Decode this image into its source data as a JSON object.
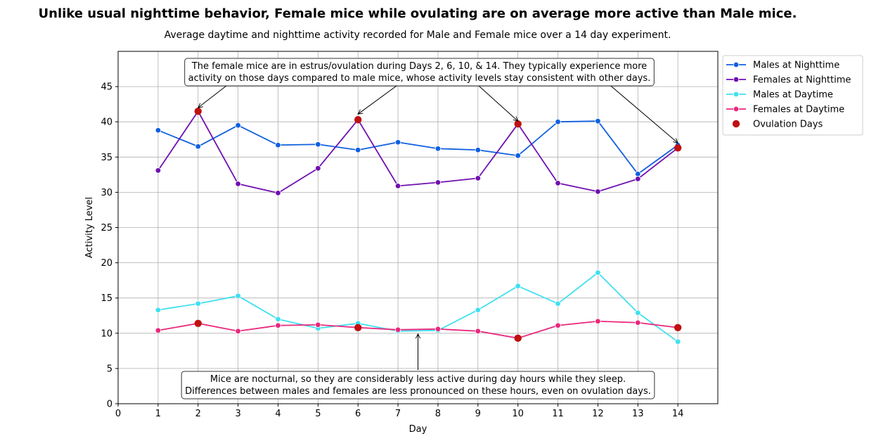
{
  "chart_data": {
    "type": "line",
    "title": "Unlike usual nighttime behavior, Female mice while ovulating are on average more active than Male mice.",
    "subtitle": "Average daytime and nighttime activity recorded for Male and Female mice over a 14 day experiment.",
    "xlabel": "Day",
    "ylabel": "Activity Level",
    "xlim": [
      0,
      15
    ],
    "ylim": [
      0,
      50
    ],
    "xticks": [
      0,
      1,
      2,
      3,
      4,
      5,
      6,
      7,
      8,
      9,
      10,
      11,
      12,
      13,
      14
    ],
    "yticks": [
      0,
      5,
      10,
      15,
      20,
      25,
      30,
      35,
      40,
      45
    ],
    "grid": true,
    "legend_position": "outside-upper-right",
    "x": [
      1,
      2,
      3,
      4,
      5,
      6,
      7,
      8,
      9,
      10,
      11,
      12,
      13,
      14
    ],
    "series": [
      {
        "name": "Males at Nighttime",
        "color": "#1060e0",
        "values": [
          38.8,
          36.5,
          39.5,
          36.7,
          36.8,
          36.0,
          37.1,
          36.2,
          36.0,
          35.2,
          40.0,
          40.1,
          32.6,
          36.7
        ]
      },
      {
        "name": "Females at Nighttime",
        "color": "#7010b0",
        "values": [
          33.1,
          41.5,
          31.2,
          29.9,
          33.4,
          40.3,
          30.9,
          31.4,
          32.0,
          39.7,
          31.3,
          30.1,
          31.9,
          36.3
        ]
      },
      {
        "name": "Males at Daytime",
        "color": "#40e0f0",
        "values": [
          13.3,
          14.2,
          15.3,
          12.0,
          10.7,
          11.4,
          10.3,
          10.4,
          13.3,
          16.7,
          14.2,
          18.6,
          12.9,
          8.8
        ]
      },
      {
        "name": "Females at Daytime",
        "color": "#e8287c",
        "values": [
          10.4,
          11.4,
          10.3,
          11.1,
          11.2,
          10.8,
          10.5,
          10.6,
          10.3,
          9.3,
          11.1,
          11.7,
          11.5,
          10.8
        ]
      }
    ],
    "ovulation": {
      "name": "Ovulation Days",
      "color": "#c01010",
      "points": [
        {
          "x": 2,
          "y": 41.5
        },
        {
          "x": 6,
          "y": 40.3
        },
        {
          "x": 10,
          "y": 39.7
        },
        {
          "x": 14,
          "y": 36.3
        },
        {
          "x": 2,
          "y": 11.4
        },
        {
          "x": 6,
          "y": 10.8
        },
        {
          "x": 10,
          "y": 9.3
        },
        {
          "x": 14,
          "y": 10.8
        }
      ]
    },
    "annotations": {
      "top": {
        "lines": [
          "The female mice are in estrus/ovulation during Days 2, 6, 10, & 14. They typically experience more",
          "activity on those days compared to male mice, whose activity levels stay consistent with other days."
        ],
        "arrow_targets": [
          {
            "x": 2,
            "y": 42.0
          },
          {
            "x": 6,
            "y": 41.1
          },
          {
            "x": 10,
            "y": 40.1
          },
          {
            "x": 14,
            "y": 37.0
          }
        ]
      },
      "bottom": {
        "lines": [
          "Mice are nocturnal, so they are considerably less active during day hours while they sleep.",
          "Differences between males and females are less pronounced on these hours, even on ovulation days."
        ],
        "arrow_targets": [
          {
            "x": 7.5,
            "y": 10.0
          }
        ]
      }
    }
  }
}
